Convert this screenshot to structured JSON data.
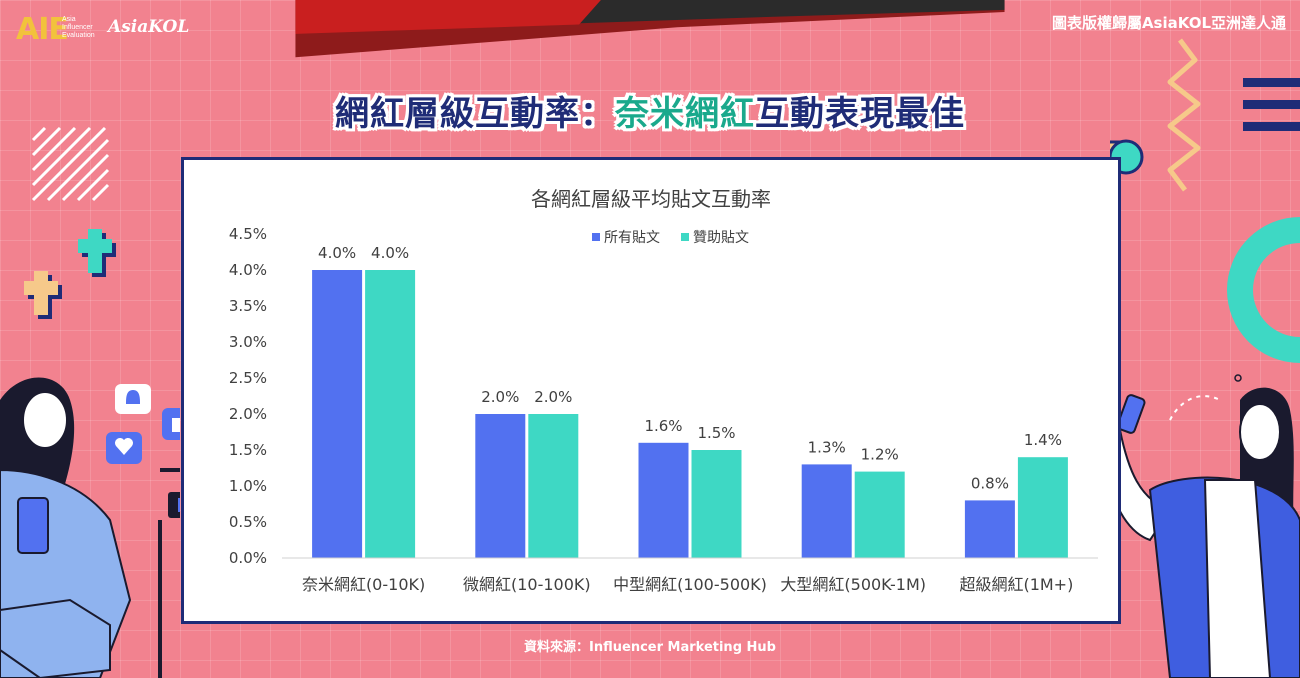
{
  "header": {
    "logo_aie": "AIE",
    "logo_aie_sub": [
      "Asia",
      "Influencer",
      "Evaluation"
    ],
    "logo_asiakol": "AsiaKOL",
    "copyright": "圖表版權歸屬AsiaKOL亞洲達人通"
  },
  "headline": {
    "part1": "網紅層級互動率：",
    "part2": "奈米網紅",
    "part3": "互動表現最佳"
  },
  "source": "資料來源：Influencer Marketing Hub",
  "colors": {
    "background": "#f2828f",
    "navy": "#1f2c77",
    "series_all": "#5271f0",
    "series_sponsored": "#3ed8c4"
  },
  "chart_data": {
    "type": "bar",
    "title": "各網紅層級平均貼文互動率",
    "categories": [
      "奈米網紅(0-10K)",
      "微網紅(10-100K)",
      "中型網紅(100-500K)",
      "大型網紅(500K-1M)",
      "超級網紅(1M+)"
    ],
    "series": [
      {
        "name": "所有貼文",
        "values": [
          4.0,
          2.0,
          1.6,
          1.3,
          0.8
        ],
        "labels": [
          "4.0%",
          "2.0%",
          "1.6%",
          "1.3%",
          "0.8%"
        ]
      },
      {
        "name": "贊助貼文",
        "values": [
          4.0,
          2.0,
          1.5,
          1.2,
          1.4
        ],
        "labels": [
          "4.0%",
          "2.0%",
          "1.5%",
          "1.2%",
          "1.4%"
        ]
      }
    ],
    "ylim": [
      0,
      4.5
    ],
    "yticks": [
      "0.0%",
      "0.5%",
      "1.0%",
      "1.5%",
      "2.0%",
      "2.5%",
      "3.0%",
      "3.5%",
      "4.0%",
      "4.5%"
    ],
    "legend": "top-center",
    "grid": false
  }
}
